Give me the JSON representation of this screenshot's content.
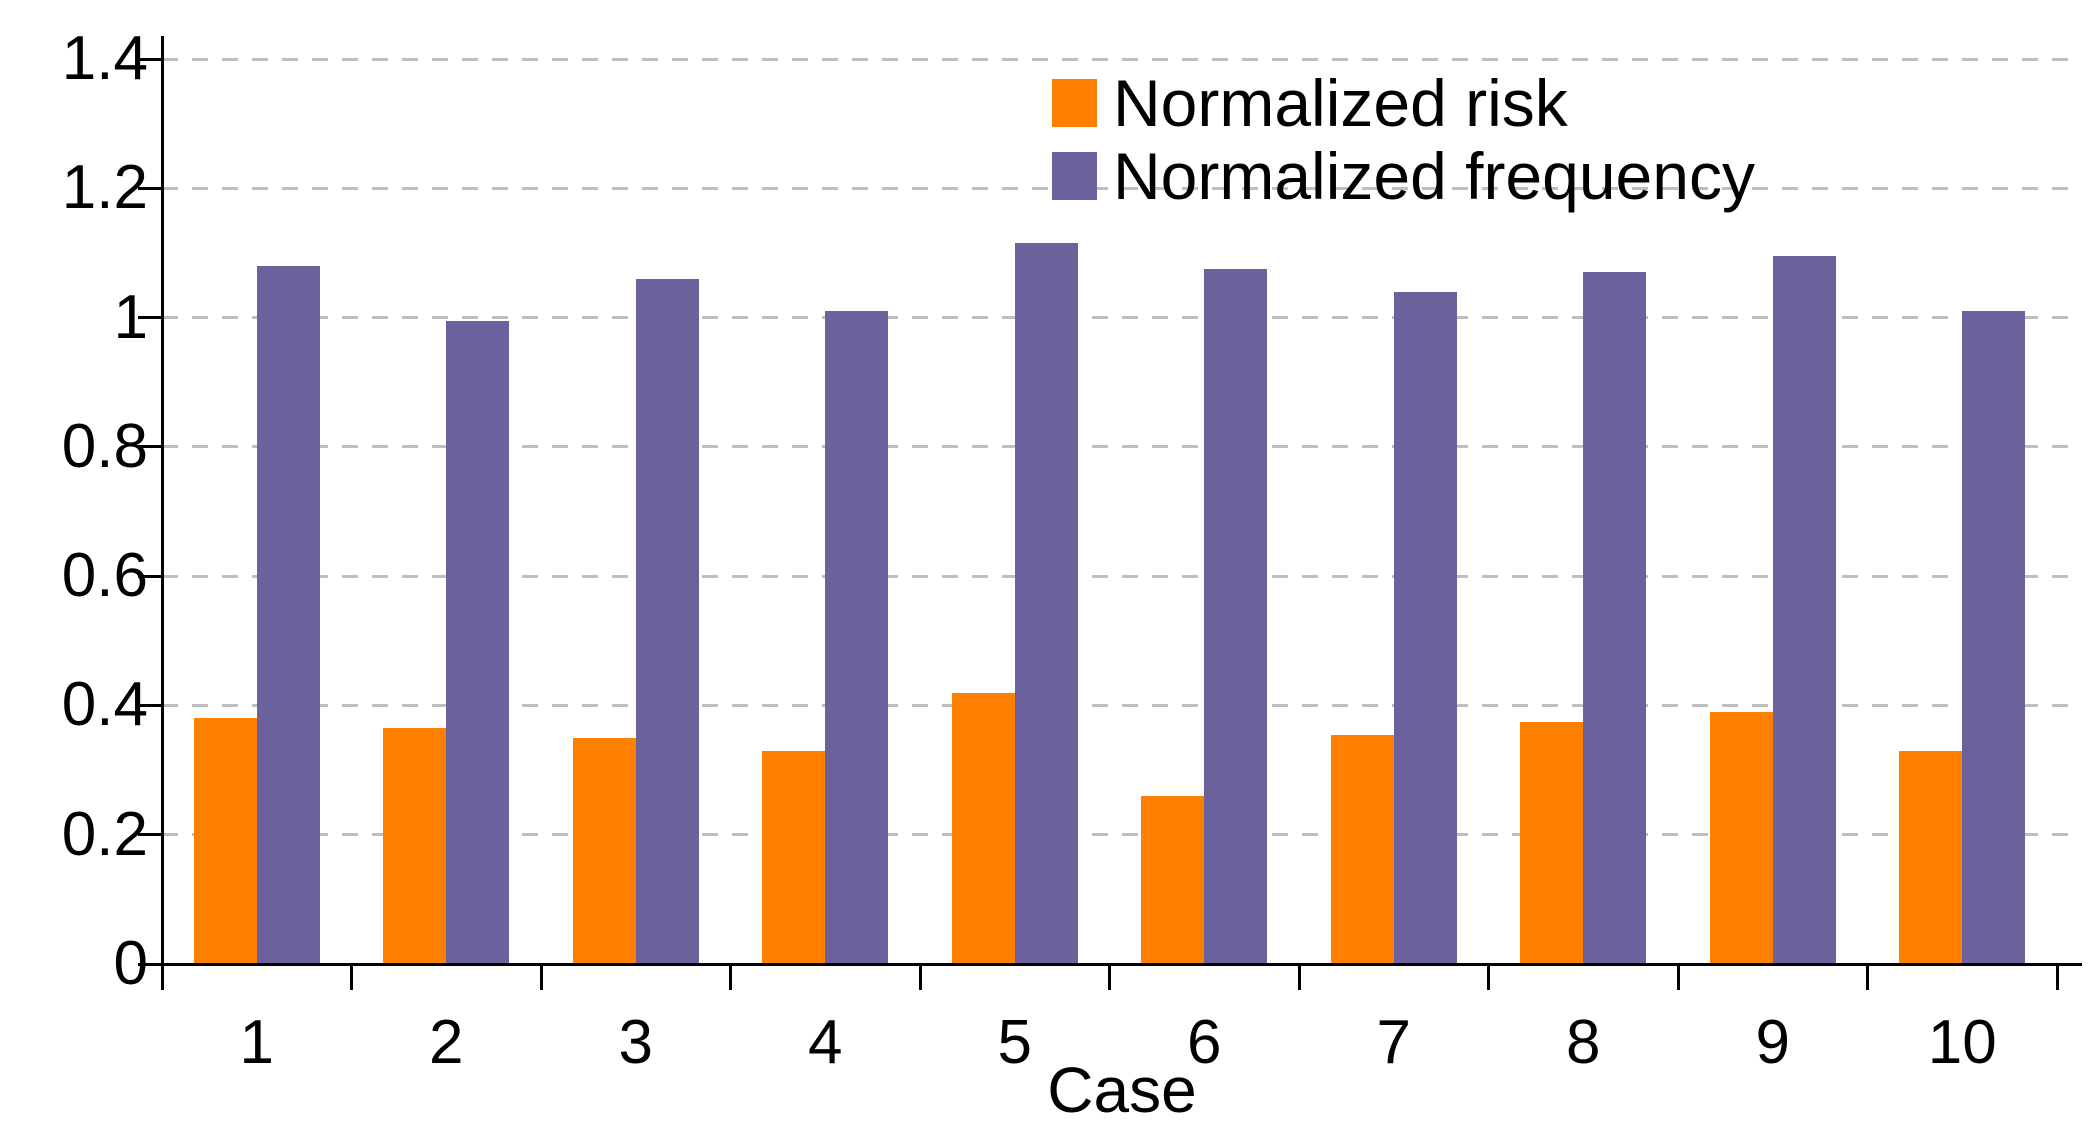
{
  "chart_data": {
    "type": "bar",
    "title": "",
    "xlabel": "Case",
    "ylabel": "",
    "categories": [
      "1",
      "2",
      "3",
      "4",
      "5",
      "6",
      "7",
      "8",
      "9",
      "10"
    ],
    "series": [
      {
        "name": "Normalized risk",
        "color": "#ff8000",
        "values": [
          0.38,
          0.365,
          0.35,
          0.33,
          0.42,
          0.26,
          0.355,
          0.375,
          0.39,
          0.33
        ]
      },
      {
        "name": "Normalized frequency",
        "color": "#6a619d",
        "values": [
          1.08,
          0.995,
          1.06,
          1.01,
          1.115,
          1.075,
          1.04,
          1.07,
          1.095,
          1.01
        ]
      }
    ],
    "ylim": [
      0,
      1.4
    ],
    "yticks": [
      0,
      0.2,
      0.4,
      0.6,
      0.8,
      1,
      1.2,
      1.4
    ],
    "ytick_labels": [
      "0",
      "0.2",
      "0.4",
      "0.6",
      "0.8",
      "1",
      "1.2",
      "1.4"
    ],
    "grid": "horizontal-dashed",
    "gridline_color": "#bfbfbf",
    "axis_color": "#000000",
    "legend_position": "top-center"
  }
}
